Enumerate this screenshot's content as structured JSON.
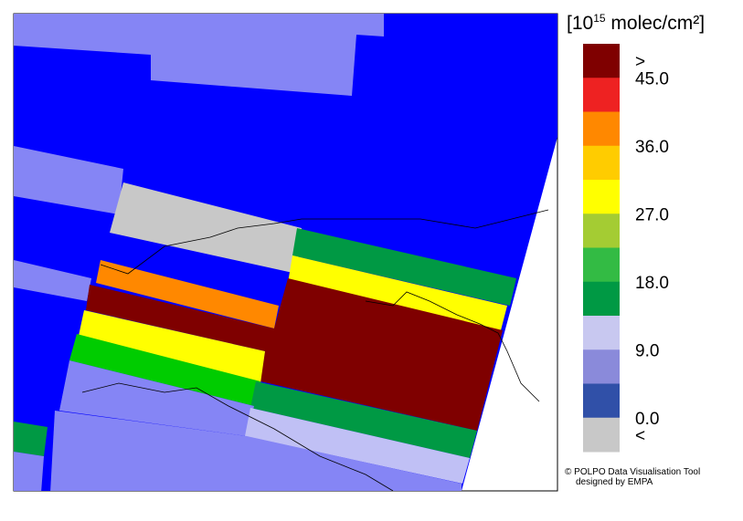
{
  "legend": {
    "unit": {
      "base": "[10",
      "exponent": "15",
      "rest": " molec/cm²]"
    },
    "colors": [
      "#7f0000",
      "#ee2222",
      "#ff8800",
      "#ffcc00",
      "#ffff00",
      "#a4cc33",
      "#33bb44",
      "#009944",
      "#c8c8f0",
      "#8a8ada",
      "#3050a8",
      "#c8c8c8"
    ],
    "labels": [
      ">",
      "45.0",
      "36.0",
      "27.0",
      "18.0",
      "9.0",
      "0.0",
      "<"
    ]
  },
  "credits": [
    "© POLPO Data Visualisation Tool",
    "designed by EMPA"
  ]
}
